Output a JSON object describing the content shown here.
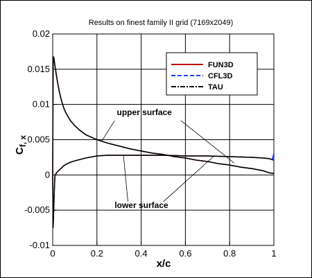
{
  "chart_data": {
    "type": "line",
    "title": "Results on finest family II grid (7169x2049)",
    "xlabel": "x/c",
    "ylabel_main": "C",
    "ylabel_sub": "f, x",
    "xlim": [
      0,
      1
    ],
    "ylim": [
      -0.01,
      0.02
    ],
    "x_ticks": [
      0,
      0.2,
      0.4,
      0.6,
      0.8,
      1
    ],
    "x_tick_labels": [
      "0",
      "0.2",
      "0.4",
      "0.6",
      "0.8",
      "1"
    ],
    "y_ticks": [
      -0.01,
      -0.005,
      0,
      0.005,
      0.01,
      0.015,
      0.02
    ],
    "y_tick_labels": [
      "-0.01",
      "-0.005",
      "0",
      "0.005",
      "0.01",
      "0.015",
      "0.02"
    ],
    "grid": true,
    "legend_position": "top-right",
    "legend": [
      {
        "name": "FUN3D",
        "color": "#c00000",
        "dash": "solid"
      },
      {
        "name": "CFL3D",
        "color": "#1f3fff",
        "dash": "dashed"
      },
      {
        "name": "TAU",
        "color": "#000000",
        "dash": "dashdot"
      }
    ],
    "curves": [
      {
        "surface": "upper",
        "x": [
          0.0,
          0.002,
          0.004,
          0.006,
          0.01,
          0.015,
          0.02,
          0.03,
          0.04,
          0.05,
          0.06,
          0.08,
          0.1,
          0.12,
          0.15,
          0.2,
          0.25,
          0.3,
          0.35,
          0.4,
          0.45,
          0.5,
          0.55,
          0.6,
          0.65,
          0.7,
          0.75,
          0.8,
          0.85,
          0.9,
          0.95,
          0.98,
          1.0
        ],
        "y": [
          0.0,
          0.0155,
          0.0168,
          0.0165,
          0.0155,
          0.0145,
          0.0135,
          0.0118,
          0.0105,
          0.0095,
          0.0088,
          0.0077,
          0.007,
          0.0064,
          0.0057,
          0.005,
          0.0045,
          0.0041,
          0.0037,
          0.0034,
          0.0031,
          0.0029,
          0.0026,
          0.0024,
          0.0021,
          0.0019,
          0.0016,
          0.0014,
          0.0011,
          0.0009,
          0.0006,
          0.0003,
          0.0002
        ]
      },
      {
        "surface": "lower",
        "x": [
          0.0,
          0.002,
          0.004,
          0.006,
          0.008,
          0.01,
          0.015,
          0.02,
          0.03,
          0.04,
          0.05,
          0.06,
          0.08,
          0.1,
          0.15,
          0.2,
          0.25,
          0.3,
          0.35,
          0.4,
          0.45,
          0.5,
          0.6,
          0.7,
          0.8,
          0.9,
          0.95,
          0.98,
          0.99,
          1.0
        ],
        "y": [
          0.0,
          -0.0075,
          -0.0055,
          -0.0035,
          -0.0015,
          -0.0002,
          0.0002,
          0.0004,
          0.0007,
          0.001,
          0.0013,
          0.0015,
          0.0018,
          0.002,
          0.0024,
          0.0027,
          0.0028,
          0.0028,
          0.0028,
          0.0028,
          0.0028,
          0.0028,
          0.0027,
          0.0027,
          0.0026,
          0.0025,
          0.0024,
          0.0023,
          0.0022,
          0.0021
        ]
      }
    ],
    "annotations": [
      {
        "text": "upper surface",
        "x": 0.29,
        "y": 0.0085
      },
      {
        "text": "lower surface",
        "x": 0.28,
        "y": -0.0047
      }
    ],
    "leaders": [
      {
        "from": [
          0.28,
          0.0077
        ],
        "to": [
          0.22,
          0.0047
        ]
      },
      {
        "from": [
          0.58,
          0.0077
        ],
        "to": [
          0.82,
          0.0017
        ]
      },
      {
        "from": [
          0.34,
          -0.0038
        ],
        "to": [
          0.32,
          0.0028
        ]
      },
      {
        "from": [
          0.5,
          -0.0038
        ],
        "to": [
          0.73,
          0.0027
        ]
      }
    ],
    "cfl3d_te_mark": {
      "x": [
        0.993,
        1.0
      ],
      "y": [
        0.0022,
        0.003
      ]
    }
  }
}
